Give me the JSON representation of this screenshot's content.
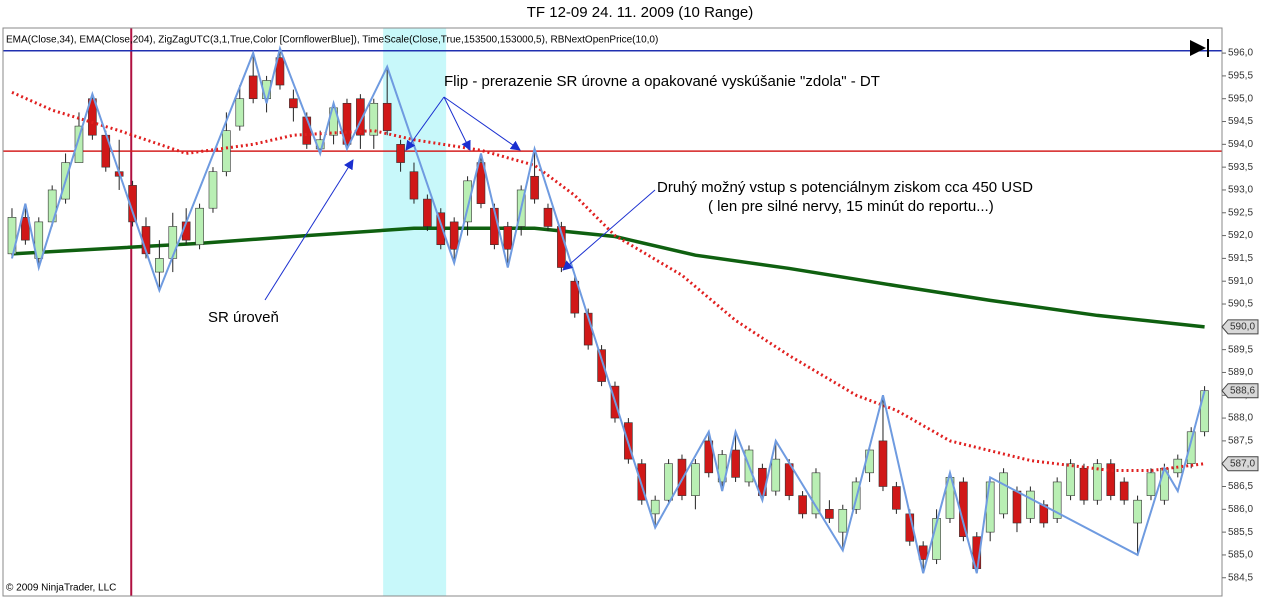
{
  "chart_data": {
    "type": "candlestick",
    "title": "TF 12-09  24. 11. 2009 (10 Range)",
    "indicators": "EMA(Close,34), EMA(Close,204), ZigZagUTC(3,1,True,Color [CornflowerBlue]), TimeScale(Close,True,153500,153000,5), RBNextOpenPrice(10,0)",
    "copyright": "© 2009 NinjaTrader, LLC",
    "annotations": {
      "flip": "Flip - prerazenie SR úrovne a opakované vyskúšanie \"zdola\" - DT",
      "entry_line1": "Druhý možný vstup s potenciálnym ziskom cca 450 USD",
      "entry_line2": "( len pre silné nervy, 15 minút do reportu...)",
      "sr": "SR  úroveň"
    },
    "up_color": "#b9efb4",
    "down_color": "#d01818",
    "xlim": [
      -0.67,
      90.3
    ],
    "ylim": [
      584.1,
      596.55
    ],
    "yticks": [
      {
        "value": 584.5,
        "label": "584,5"
      },
      {
        "value": 585.0,
        "label": "585,0"
      },
      {
        "value": 585.5,
        "label": "585,5"
      },
      {
        "value": 586.0,
        "label": "586,0"
      },
      {
        "value": 586.5,
        "label": "586,5"
      },
      {
        "value": 587.0,
        "label": "587,0"
      },
      {
        "value": 587.5,
        "label": "587,5"
      },
      {
        "value": 588.0,
        "label": "588,0"
      },
      {
        "value": 588.5,
        "label": "588,5"
      },
      {
        "value": 589.0,
        "label": "589,0"
      },
      {
        "value": 589.5,
        "label": "589,5"
      },
      {
        "value": 590.0,
        "label": "590,0"
      },
      {
        "value": 590.5,
        "label": "590,5"
      },
      {
        "value": 591.0,
        "label": "591,0"
      },
      {
        "value": 591.5,
        "label": "591,5"
      },
      {
        "value": 592.0,
        "label": "592,0"
      },
      {
        "value": 592.5,
        "label": "592,5"
      },
      {
        "value": 593.0,
        "label": "593,0"
      },
      {
        "value": 593.5,
        "label": "593,5"
      },
      {
        "value": 594.0,
        "label": "594,0"
      },
      {
        "value": 594.5,
        "label": "594,5"
      },
      {
        "value": 595.0,
        "label": "595,0"
      },
      {
        "value": 595.5,
        "label": "595,5"
      },
      {
        "value": 596.0,
        "label": "596,0"
      }
    ],
    "open": [
      591.6,
      592.4,
      591.5,
      592.3,
      592.8,
      593.6,
      595.0,
      594.2,
      593.4,
      593.1,
      592.2,
      591.2,
      591.5,
      592.3,
      591.8,
      592.6,
      593.4,
      594.4,
      595.5,
      595.0,
      595.9,
      595.0,
      594.6,
      593.9,
      594.2,
      594.9,
      595.0,
      594.2,
      594.9,
      594.0,
      593.4,
      592.8,
      592.5,
      592.3,
      592.3,
      593.6,
      592.6,
      592.2,
      592.2,
      593.3,
      592.6,
      592.2,
      591.0,
      590.3,
      589.5,
      588.7,
      587.9,
      587.0,
      585.9,
      586.2,
      587.1,
      586.3,
      587.5,
      586.6,
      587.3,
      586.6,
      586.9,
      586.4,
      587.0,
      586.3,
      585.9,
      586.0,
      585.5,
      586.0,
      586.8,
      587.5,
      586.5,
      585.9,
      585.2,
      584.9,
      585.8,
      586.6,
      585.4,
      585.5,
      585.9,
      586.4,
      585.8,
      586.1,
      585.8,
      586.3,
      586.9,
      586.2,
      587.0,
      586.6,
      585.7,
      586.3,
      586.2,
      586.8,
      587.0,
      587.7
    ],
    "high": [
      592.6,
      592.7,
      592.4,
      593.1,
      593.8,
      594.7,
      595.1,
      594.3,
      594.1,
      593.2,
      592.4,
      591.9,
      592.5,
      592.6,
      592.7,
      593.5,
      594.7,
      595.3,
      596.0,
      595.5,
      596.1,
      595.2,
      594.7,
      594.3,
      594.9,
      595.0,
      595.1,
      595.0,
      595.7,
      594.1,
      593.6,
      592.9,
      592.6,
      592.4,
      593.3,
      593.8,
      592.7,
      592.3,
      593.1,
      593.9,
      592.7,
      592.3,
      591.1,
      590.4,
      589.6,
      588.8,
      588.0,
      587.1,
      586.3,
      587.1,
      587.2,
      587.1,
      587.7,
      587.3,
      587.7,
      587.4,
      587.0,
      587.5,
      587.1,
      586.4,
      586.9,
      586.2,
      586.1,
      586.7,
      587.4,
      588.5,
      586.6,
      586.0,
      585.3,
      586.0,
      586.8,
      586.7,
      585.5,
      586.7,
      586.9,
      586.5,
      586.5,
      586.2,
      586.7,
      587.1,
      587.0,
      587.1,
      587.1,
      586.7,
      586.3,
      586.9,
      587.0,
      587.2,
      587.8,
      588.7
    ],
    "low": [
      591.5,
      591.8,
      591.3,
      592.2,
      592.7,
      593.6,
      594.1,
      593.4,
      593.0,
      592.2,
      591.5,
      590.8,
      591.2,
      591.8,
      591.7,
      592.5,
      593.3,
      594.3,
      594.9,
      594.7,
      595.2,
      594.5,
      593.9,
      593.8,
      594.0,
      593.9,
      593.9,
      593.9,
      594.2,
      593.4,
      592.7,
      592.1,
      591.7,
      591.4,
      592.0,
      592.6,
      591.7,
      591.3,
      592.0,
      592.7,
      592.1,
      591.2,
      590.2,
      589.5,
      588.7,
      587.9,
      587.0,
      586.1,
      585.6,
      586.1,
      586.2,
      586.0,
      586.7,
      586.4,
      586.6,
      586.5,
      586.2,
      586.3,
      586.2,
      585.8,
      585.8,
      585.7,
      585.1,
      585.9,
      586.6,
      586.4,
      585.9,
      585.2,
      584.6,
      584.8,
      585.7,
      585.3,
      584.6,
      585.3,
      585.8,
      585.5,
      585.7,
      585.6,
      585.7,
      586.2,
      586.1,
      586.1,
      586.2,
      586.1,
      585.0,
      586.2,
      586.1,
      586.7,
      586.9,
      587.6
    ],
    "close": [
      592.4,
      591.9,
      592.3,
      593.0,
      593.6,
      594.4,
      594.2,
      593.5,
      593.3,
      592.3,
      591.6,
      591.5,
      592.2,
      591.9,
      592.6,
      593.4,
      594.3,
      595.0,
      595.0,
      595.4,
      595.3,
      594.8,
      594.0,
      594.1,
      594.8,
      594.0,
      594.2,
      594.9,
      594.3,
      593.6,
      592.8,
      592.2,
      591.8,
      591.7,
      593.2,
      592.7,
      591.8,
      591.7,
      593.0,
      592.8,
      592.2,
      591.3,
      590.3,
      589.6,
      588.8,
      588.0,
      587.1,
      586.2,
      586.2,
      587.0,
      586.3,
      587.0,
      586.8,
      587.2,
      586.7,
      587.3,
      586.3,
      587.1,
      586.3,
      585.9,
      586.8,
      585.8,
      586.0,
      586.6,
      587.3,
      586.5,
      586.0,
      585.3,
      584.9,
      585.8,
      586.7,
      585.4,
      584.7,
      586.6,
      586.8,
      585.7,
      586.4,
      585.7,
      586.6,
      587.0,
      586.2,
      587.0,
      586.3,
      586.2,
      586.2,
      586.8,
      586.9,
      587.1,
      587.7,
      588.6
    ],
    "ema34": {
      "color": "#e02020",
      "x": [
        0,
        3,
        8,
        13,
        18,
        21,
        27,
        30,
        35,
        39,
        42,
        45,
        50,
        54,
        58,
        63,
        66,
        70,
        76,
        82,
        85,
        89
      ],
      "values": [
        595.14,
        594.75,
        594.3,
        593.8,
        594.0,
        594.2,
        594.3,
        594.1,
        593.87,
        593.54,
        592.88,
        592.0,
        591.13,
        590.14,
        589.37,
        588.5,
        588.17,
        587.5,
        587.07,
        586.85,
        586.85,
        587.0
      ]
    },
    "ema204": {
      "color": "#0f6010",
      "x": [
        0,
        14,
        21,
        30,
        39,
        45,
        51,
        58,
        66,
        73,
        81,
        89
      ],
      "values": [
        591.6,
        591.83,
        591.98,
        592.16,
        592.16,
        591.98,
        591.57,
        591.28,
        590.9,
        590.58,
        590.25,
        590.0
      ]
    },
    "zigzag": {
      "color": "#6f9be0",
      "x": [
        0,
        1,
        2,
        6,
        11,
        18,
        19,
        20,
        23,
        24,
        25,
        28,
        33,
        35,
        37,
        39,
        48,
        52,
        53,
        54,
        56,
        57,
        62,
        65,
        68,
        70,
        72,
        73,
        84,
        86,
        87,
        89
      ],
      "values": [
        591.5,
        592.7,
        591.3,
        595.1,
        590.8,
        596.0,
        594.9,
        596.1,
        593.8,
        594.9,
        593.9,
        595.7,
        591.4,
        593.8,
        591.3,
        593.9,
        585.6,
        587.7,
        586.4,
        587.7,
        586.2,
        587.5,
        585.1,
        588.5,
        584.6,
        586.8,
        584.6,
        586.7,
        585.0,
        586.9,
        586.4,
        588.6
      ]
    },
    "horizontal_lines": [
      {
        "value": 593.85,
        "color": "#d42020"
      },
      {
        "value": 596.05,
        "color": "#2030b0"
      }
    ],
    "vertical_line": {
      "x": 8.9,
      "color": "#b01040"
    },
    "highlight": {
      "x": [
        27.7,
        32.4
      ],
      "color": "#c8f8fa"
    },
    "price_markers": [
      {
        "value": 590.0,
        "label": "590,0"
      },
      {
        "value": 588.6,
        "label": "588,6"
      },
      {
        "value": 587.0,
        "label": "587,0"
      }
    ]
  }
}
